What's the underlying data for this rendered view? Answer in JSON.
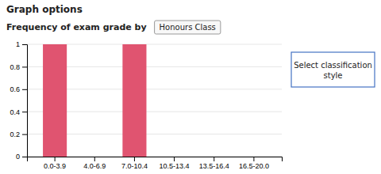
{
  "chart_data": {
    "type": "bar",
    "annotations": [
      "Graph options",
      "Frequency of exam grade by",
      "Honours Class",
      "Select classification\nstyle"
    ],
    "categories": [
      "0.0-3.9",
      "4.0-6.9",
      "7.0-10.4",
      "10.5-13.4",
      "13.5-16.4",
      "16.5-20.0"
    ],
    "values": [
      1.0,
      0.0,
      1.0,
      0.0,
      0.0,
      0.0
    ],
    "color": "#e05470",
    "ylim": [
      0,
      1.0
    ],
    "yticks": [
      0,
      0.2,
      0.4,
      0.6,
      0.8,
      1
    ],
    "grid": true
  }
}
